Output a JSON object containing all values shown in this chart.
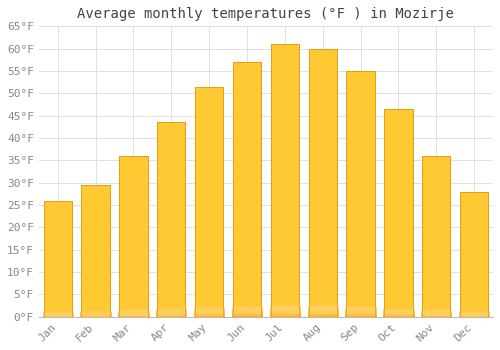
{
  "title": "Average monthly temperatures (°F ) in Mozirje",
  "months": [
    "Jan",
    "Feb",
    "Mar",
    "Apr",
    "May",
    "Jun",
    "Jul",
    "Aug",
    "Sep",
    "Oct",
    "Nov",
    "Dec"
  ],
  "values": [
    26,
    29.5,
    36,
    43.5,
    51.5,
    57,
    61,
    60,
    55,
    46.5,
    36,
    28
  ],
  "bar_color_top": "#FFC933",
  "bar_color_bottom": "#FFA000",
  "bar_edge_color": "#E8960A",
  "ylim": [
    0,
    65
  ],
  "yticks": [
    0,
    5,
    10,
    15,
    20,
    25,
    30,
    35,
    40,
    45,
    50,
    55,
    60,
    65
  ],
  "background_color": "#ffffff",
  "grid_color": "#e0e0e0",
  "title_fontsize": 10,
  "tick_fontsize": 8,
  "font_family": "monospace",
  "tick_color": "#888888",
  "title_color": "#444444"
}
